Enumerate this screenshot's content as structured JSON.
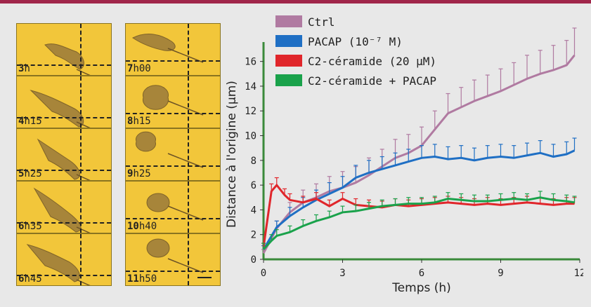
{
  "panels": {
    "left": [
      {
        "bold": "3",
        "rest": "h"
      },
      {
        "bold": "4",
        "rest": "h15"
      },
      {
        "bold": "5",
        "rest": "h25"
      },
      {
        "bold": "6",
        "rest": "h35"
      },
      {
        "bold": "6",
        "rest": "h45"
      }
    ],
    "right": [
      {
        "bold": "7",
        "rest": "h00"
      },
      {
        "bold": "8",
        "rest": "h15"
      },
      {
        "bold": "9",
        "rest": "h25"
      },
      {
        "bold": "10",
        "rest": "h40"
      },
      {
        "bold": "11",
        "rest": "h50"
      }
    ],
    "colors": {
      "background": "#f2c63a",
      "accent": "#a0264a"
    }
  },
  "chart_data": {
    "type": "line",
    "xlabel": "Temps (h)",
    "ylabel": "Distance à l'origine (µm)",
    "xlim": [
      0,
      12
    ],
    "ylim": [
      0,
      17
    ],
    "xticks": [
      "0",
      "3",
      "6",
      "9",
      "12"
    ],
    "yticks": [
      "0",
      "2",
      "4",
      "6",
      "8",
      "10",
      "12",
      "14",
      "16"
    ],
    "legend_position": "top-left",
    "error_bars": true,
    "series": [
      {
        "name": "Ctrl",
        "color": "#b07aa1",
        "x": [
          0,
          0.5,
          1,
          1.5,
          2,
          2.5,
          3,
          3.5,
          4,
          4.5,
          5,
          5.5,
          6,
          6.5,
          7,
          7.5,
          8,
          8.5,
          9,
          9.5,
          10,
          10.5,
          11,
          11.5,
          11.8
        ],
        "y": [
          0.5,
          2.5,
          3.8,
          4.6,
          5,
          5.5,
          5.8,
          6.2,
          6.8,
          7.5,
          8.2,
          8.6,
          9.2,
          10.5,
          11.8,
          12.3,
          12.8,
          13.2,
          13.6,
          14.1,
          14.6,
          15,
          15.3,
          15.7,
          16.5
        ],
        "err": [
          0.3,
          0.6,
          0.8,
          1,
          1.1,
          1.2,
          1.3,
          1.3,
          1.4,
          1.4,
          1.5,
          1.5,
          1.5,
          1.5,
          1.6,
          1.6,
          1.7,
          1.7,
          1.8,
          1.8,
          1.9,
          1.9,
          2,
          2,
          2.2
        ]
      },
      {
        "name": "PACAP (10⁻⁷ M)",
        "color": "#1f6fc4",
        "x": [
          0,
          0.5,
          1,
          1.5,
          2,
          2.5,
          3,
          3.5,
          4,
          4.5,
          5,
          5.5,
          6,
          6.5,
          7,
          7.5,
          8,
          8.5,
          9,
          9.5,
          10,
          10.5,
          11,
          11.5,
          11.8
        ],
        "y": [
          0.8,
          2.6,
          3.5,
          4.2,
          4.8,
          5.3,
          5.8,
          6.6,
          7,
          7.3,
          7.6,
          7.9,
          8.2,
          8.3,
          8.1,
          8.2,
          8.0,
          8.2,
          8.3,
          8.2,
          8.4,
          8.6,
          8.3,
          8.5,
          8.8
        ],
        "err": [
          0.3,
          0.5,
          0.7,
          0.8,
          0.8,
          0.9,
          0.9,
          1,
          1,
          1,
          1,
          1,
          1,
          1,
          1,
          1,
          1,
          1,
          1,
          1,
          1,
          1,
          1,
          1,
          1
        ]
      },
      {
        "name": "C2-céramide (20 µM)",
        "color": "#e0262b",
        "x": [
          0,
          0.3,
          0.5,
          0.8,
          1,
          1.5,
          2,
          2.5,
          3,
          3.5,
          4,
          4.5,
          5,
          5.5,
          6,
          6.5,
          7,
          7.5,
          8,
          8.5,
          9,
          9.5,
          10,
          10.5,
          11,
          11.5,
          11.8
        ],
        "y": [
          1,
          5.5,
          6,
          5.2,
          4.8,
          4.6,
          4.9,
          4.3,
          4.9,
          4.4,
          4.3,
          4.2,
          4.4,
          4.3,
          4.4,
          4.5,
          4.6,
          4.5,
          4.4,
          4.5,
          4.4,
          4.5,
          4.6,
          4.5,
          4.4,
          4.5,
          4.5
        ],
        "err": [
          0.3,
          0.6,
          0.6,
          0.5,
          0.5,
          0.5,
          0.5,
          0.5,
          0.5,
          0.5,
          0.5,
          0.5,
          0.5,
          0.5,
          0.5,
          0.5,
          0.5,
          0.5,
          0.5,
          0.5,
          0.5,
          0.5,
          0.5,
          0.5,
          0.5,
          0.5,
          0.5
        ]
      },
      {
        "name": "C2-céramide + PACAP",
        "color": "#1aa24b",
        "x": [
          0,
          0.3,
          0.5,
          1,
          1.5,
          2,
          2.5,
          3,
          3.5,
          4,
          4.5,
          5,
          5.5,
          6,
          6.5,
          7,
          7.5,
          8,
          8.5,
          9,
          9.5,
          10,
          10.5,
          11,
          11.5,
          11.8
        ],
        "y": [
          0.8,
          1.5,
          1.9,
          2.2,
          2.7,
          3.1,
          3.4,
          3.8,
          3.9,
          4.1,
          4.3,
          4.4,
          4.5,
          4.5,
          4.6,
          4.9,
          4.8,
          4.7,
          4.7,
          4.8,
          4.9,
          4.8,
          5.0,
          4.8,
          4.7,
          4.6
        ],
        "err": [
          0.5,
          0.5,
          0.5,
          0.5,
          0.5,
          0.5,
          0.5,
          0.5,
          0.5,
          0.5,
          0.5,
          0.5,
          0.5,
          0.5,
          0.5,
          0.5,
          0.5,
          0.5,
          0.5,
          0.5,
          0.5,
          0.5,
          0.5,
          0.5,
          0.5,
          0.5
        ]
      }
    ]
  }
}
